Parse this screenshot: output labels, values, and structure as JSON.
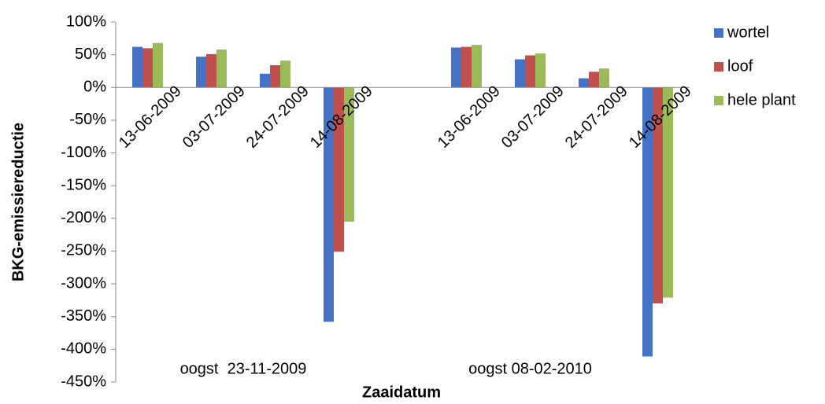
{
  "chart_data": {
    "type": "bar",
    "categories": [
      "13-06-2009",
      "03-07-2009",
      "24-07-2009",
      "14-08-2009",
      null,
      "13-06-2009",
      "03-07-2009",
      "24-07-2009",
      "14-08-2009"
    ],
    "series": [
      {
        "name": "wortel",
        "color": "#4472c4",
        "values": [
          62,
          47,
          21,
          -358,
          null,
          61,
          43,
          14,
          -411
        ]
      },
      {
        "name": "loof",
        "color": "#c0504d",
        "values": [
          60,
          51,
          34,
          -251,
          null,
          62,
          49,
          24,
          -330
        ]
      },
      {
        "name": "hele plant",
        "color": "#9bbb59",
        "values": [
          68,
          58,
          41,
          -205,
          null,
          65,
          52,
          29,
          -321
        ]
      }
    ],
    "ylim": [
      -450,
      100
    ],
    "yticks": [
      {
        "value": 100,
        "label": "100%"
      },
      {
        "value": 50,
        "label": "50%"
      },
      {
        "value": 0,
        "label": "0%"
      },
      {
        "value": -50,
        "label": "-50%"
      },
      {
        "value": -100,
        "label": "-100%"
      },
      {
        "value": -150,
        "label": "-150%"
      },
      {
        "value": -200,
        "label": "-200%"
      },
      {
        "value": -250,
        "label": "-250%"
      },
      {
        "value": -300,
        "label": "-300%"
      },
      {
        "value": -350,
        "label": "-350%"
      },
      {
        "value": -400,
        "label": "-400%"
      },
      {
        "value": -450,
        "label": "-450%"
      }
    ],
    "ylabel": "BKG-emissiereductie",
    "xlabel": "Zaaidatum",
    "annotations": [
      "oogst  23-11-2009",
      "oogst 08-02-2010"
    ],
    "legend": "right"
  }
}
